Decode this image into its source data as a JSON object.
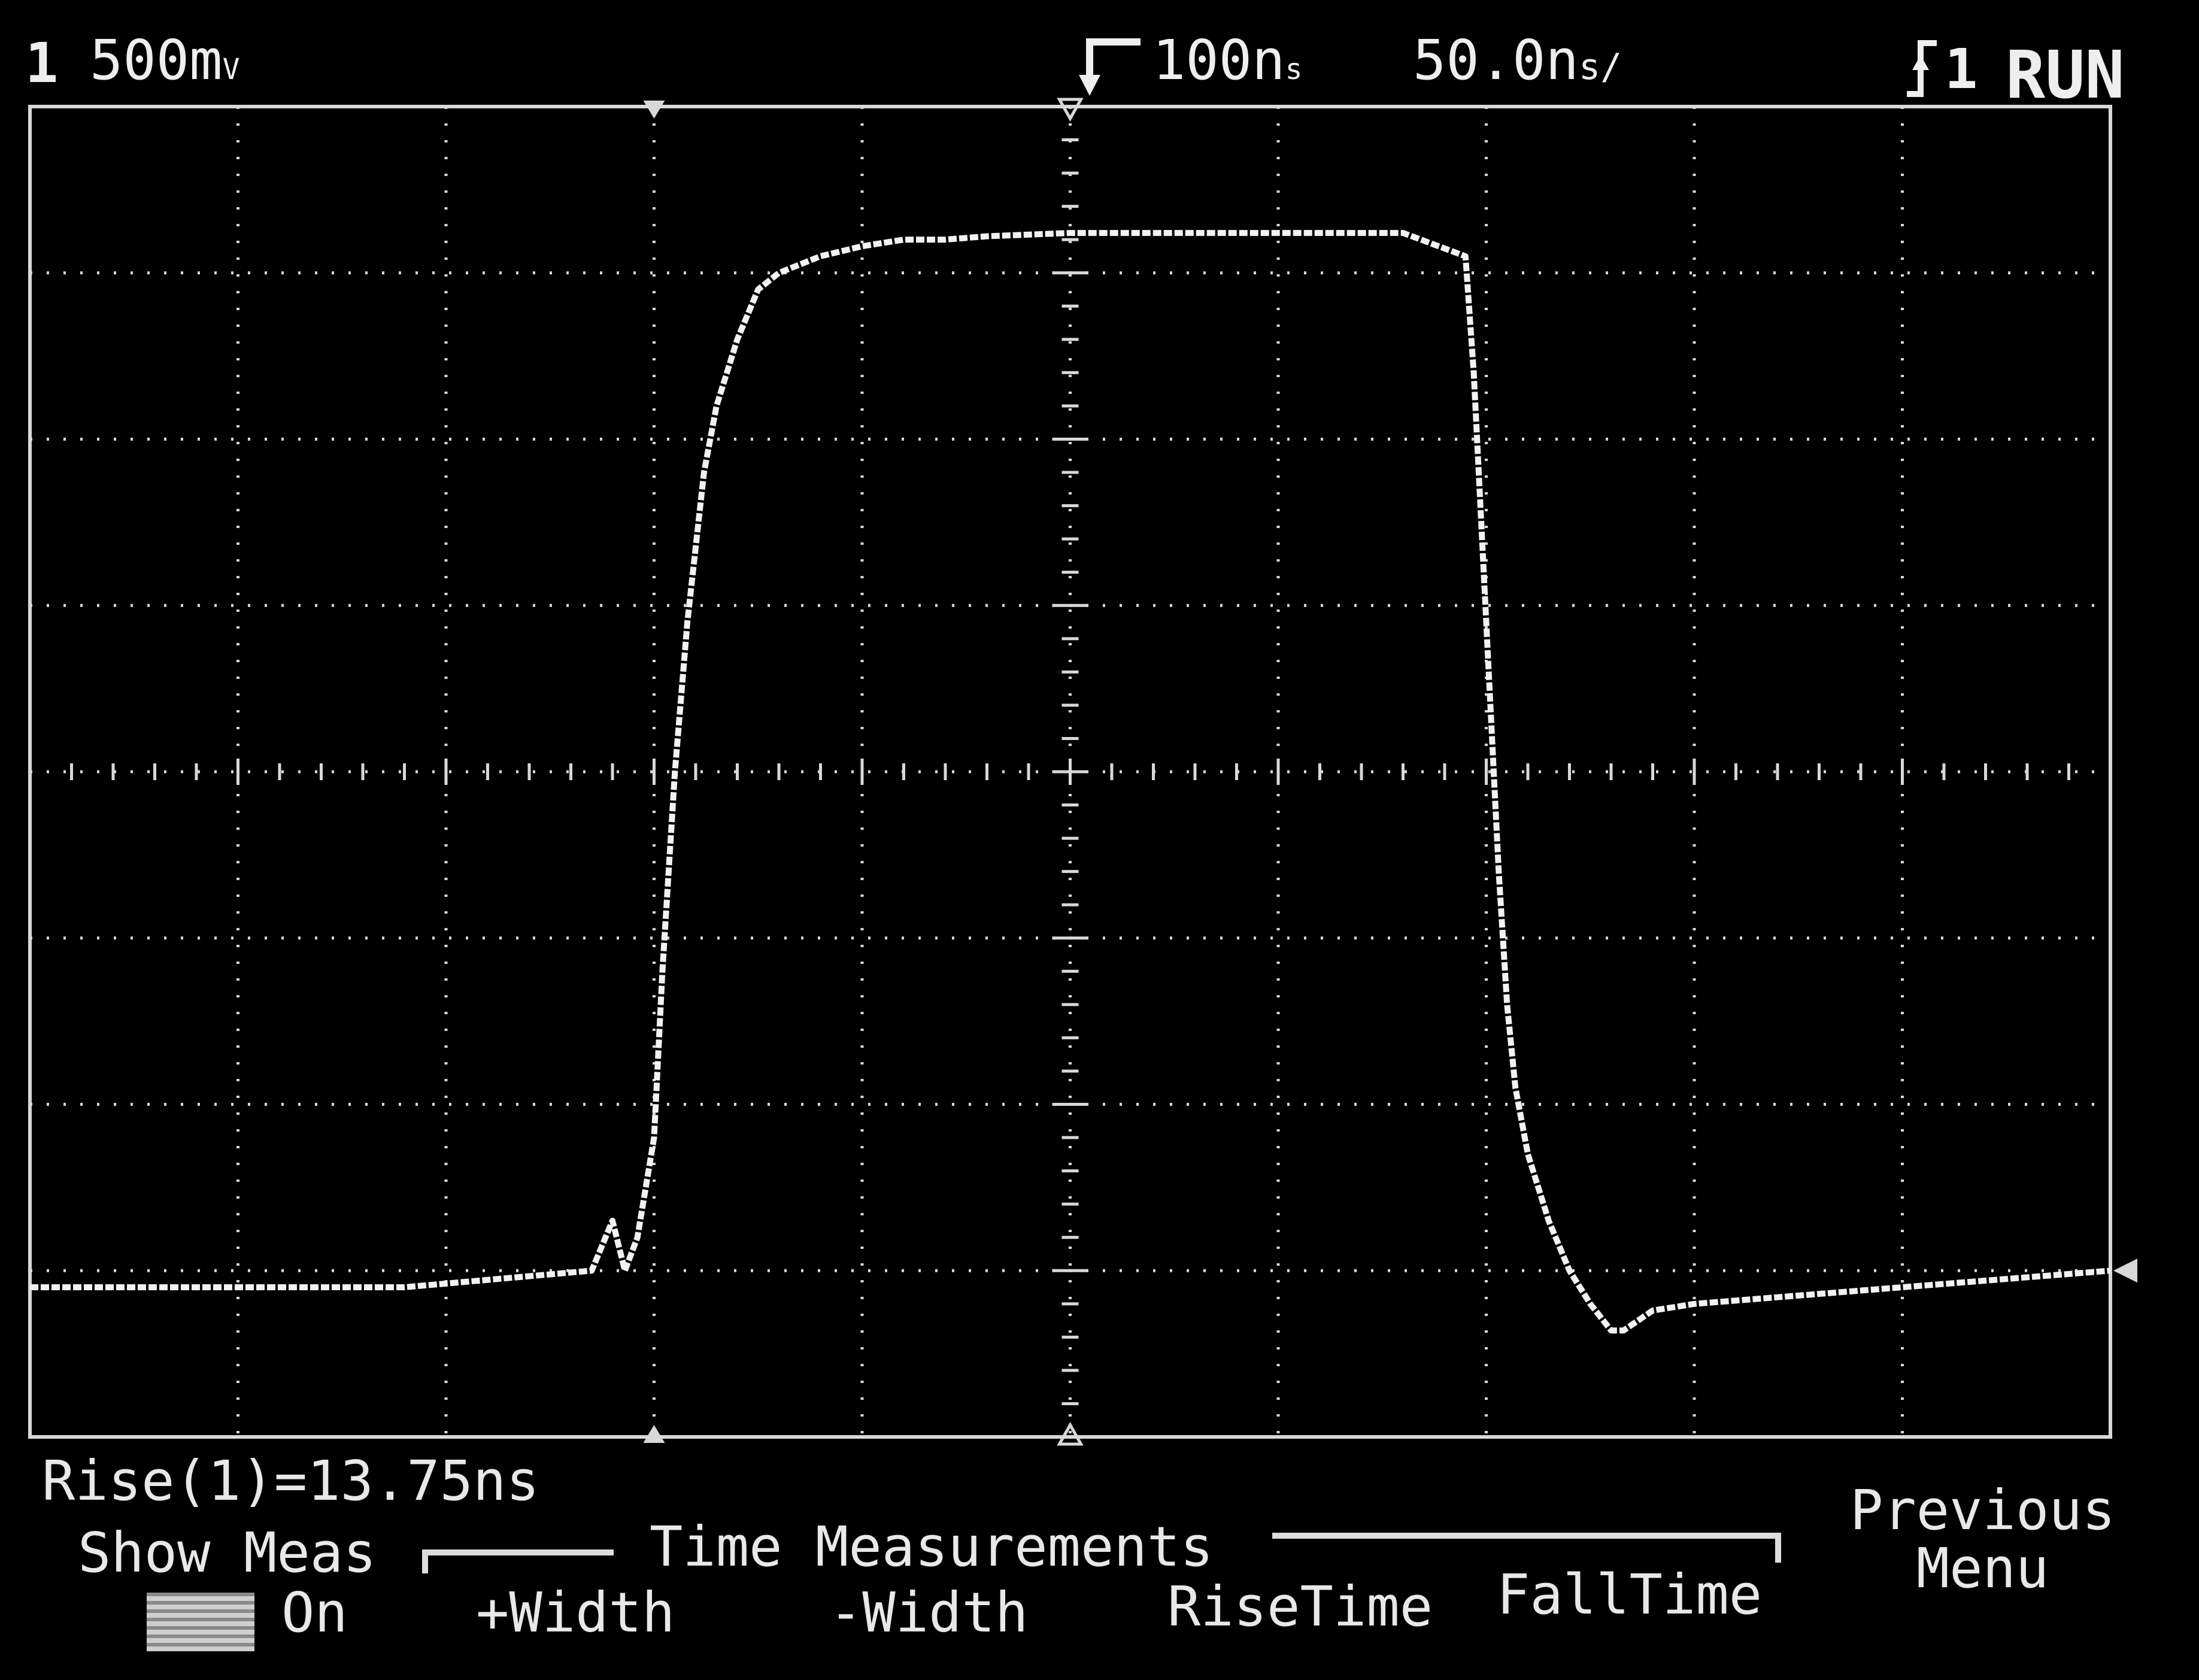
{
  "header": {
    "channel_number": "1",
    "volts_per_div": "500m",
    "volts_per_div_unit": "V",
    "trigger_delay": "100n",
    "trigger_delay_unit": "s",
    "time_per_div": "50.0n",
    "time_per_div_unit": "s/",
    "trigger_channel": "1",
    "run_state": "RUN"
  },
  "measurement": {
    "readout": "Rise(1)=13.75ns"
  },
  "softkeys": {
    "show_meas_label": "Show Meas",
    "show_meas_state": "On",
    "time_group_title": "Time Measurements",
    "plus_width": "+Width",
    "minus_width": "-Width",
    "rise_time": "RiseTime",
    "fall_time": "FallTime",
    "previous_line1": "Previous",
    "previous_line2": "Menu"
  },
  "icons": {
    "trigger_delay_marker": "trigger-delay-icon",
    "trigger_slope": "rising-edge-icon",
    "ground_marker": "ground-reference-icon"
  },
  "colors": {
    "background": "#000000",
    "trace": "#f2f2f2",
    "graticule": "#d8d8d8"
  },
  "chart_data": {
    "type": "line",
    "title": "",
    "xlabel": "",
    "ylabel": "",
    "x_unit": "ns",
    "y_unit": "V",
    "xlim": [
      -250,
      250
    ],
    "ylim": [
      -2.0,
      2.0
    ],
    "grid": true,
    "series": [
      {
        "name": "",
        "x": [
          -250,
          -160,
          -115,
          -110,
          -107,
          -104,
          -100,
          -98,
          -95,
          -92,
          -88,
          -85,
          -80,
          -75,
          -70,
          -60,
          -50,
          -40,
          -30,
          -20,
          0,
          40,
          80,
          95,
          97,
          99,
          101,
          103,
          105,
          107,
          110,
          115,
          120,
          125,
          130,
          133,
          140,
          150,
          170,
          200,
          250
        ],
        "y": [
          -1.55,
          -1.55,
          -1.5,
          -1.35,
          -1.5,
          -1.4,
          -1.1,
          -0.6,
          0.0,
          0.45,
          0.9,
          1.1,
          1.3,
          1.45,
          1.5,
          1.55,
          1.58,
          1.6,
          1.6,
          1.61,
          1.62,
          1.62,
          1.62,
          1.55,
          1.2,
          0.7,
          0.2,
          -0.3,
          -0.7,
          -0.95,
          -1.15,
          -1.35,
          -1.5,
          -1.6,
          -1.68,
          -1.68,
          -1.62,
          -1.6,
          -1.58,
          -1.55,
          -1.5
        ]
      }
    ]
  }
}
